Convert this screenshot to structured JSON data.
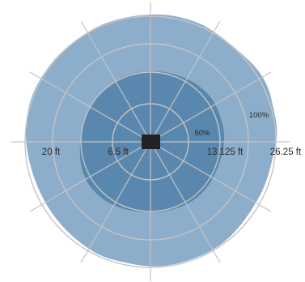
{
  "distance_labels": {
    "left_outer": "20 ft",
    "left_inner": "6.5 ft",
    "right_inner": "13.125 ft",
    "right_outer": "26.25 ft"
  },
  "percent_labels": {
    "p50": "50%",
    "p100": "100%"
  },
  "colors": {
    "outer_coverage": "#8daecb",
    "inner_coverage": "#5a87ad",
    "grid": "#c4c4c4",
    "device": "#222222",
    "text": "#2a2a2a"
  }
}
